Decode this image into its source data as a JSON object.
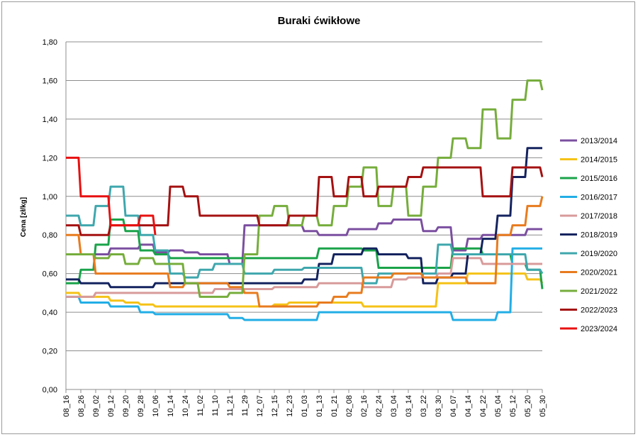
{
  "chart_data": {
    "type": "line",
    "title": "Buraki ćwikłowe",
    "ylabel": "Cena [zł/kg]",
    "xlabel": "",
    "ylim": [
      0,
      1.8
    ],
    "yticks": [
      "0,00",
      "0,20",
      "0,40",
      "0,60",
      "0,80",
      "1,00",
      "1,20",
      "1,40",
      "1,60",
      "1,80"
    ],
    "ytick_values": [
      0,
      0.2,
      0.4,
      0.6,
      0.8,
      1.0,
      1.2,
      1.4,
      1.6,
      1.8
    ],
    "x_categories": [
      "08_16",
      "08_26",
      "09_02",
      "09_12",
      "09_20",
      "09_28",
      "10_06",
      "10_14",
      "10_24",
      "11_02",
      "11_10",
      "11_21",
      "11_29",
      "12_07",
      "12_15",
      "12_23",
      "01_03",
      "01_13",
      "01_21",
      "02_08",
      "02_16",
      "02_24",
      "03_04",
      "03_14",
      "03_22",
      "03_30",
      "04_07",
      "04_14",
      "04_22",
      "05_04",
      "05_12",
      "05_20",
      "05_30"
    ],
    "grid": "horizontal",
    "legend_position": "right",
    "series": [
      {
        "name": "2013/2014",
        "color": "#7b4fa0",
        "values": [
          0.7,
          0.7,
          0.7,
          0.73,
          0.73,
          0.75,
          0.71,
          0.72,
          0.71,
          0.7,
          0.7,
          0.65,
          0.85,
          0.85,
          0.85,
          0.85,
          0.82,
          0.8,
          0.8,
          0.83,
          0.83,
          0.86,
          0.88,
          0.88,
          0.82,
          0.84,
          0.72,
          0.78,
          0.8,
          0.8,
          0.8,
          0.83,
          0.83
        ]
      },
      {
        "name": "2014/2015",
        "color": "#f5c217",
        "values": [
          0.5,
          0.48,
          0.48,
          0.46,
          0.45,
          0.44,
          0.43,
          0.43,
          0.43,
          0.43,
          0.43,
          0.43,
          0.43,
          0.43,
          0.44,
          0.45,
          0.45,
          0.45,
          0.45,
          0.45,
          0.43,
          0.43,
          0.43,
          0.43,
          0.43,
          0.55,
          0.55,
          0.6,
          0.6,
          0.6,
          0.6,
          0.57,
          0.55
        ]
      },
      {
        "name": "2015/2016",
        "color": "#1aa34a",
        "values": [
          0.55,
          0.62,
          0.75,
          0.88,
          0.82,
          0.72,
          0.7,
          0.68,
          0.68,
          0.68,
          0.68,
          0.68,
          0.68,
          0.68,
          0.68,
          0.68,
          0.68,
          0.73,
          0.73,
          0.73,
          0.72,
          0.63,
          0.63,
          0.63,
          0.63,
          0.63,
          0.73,
          0.73,
          0.7,
          0.7,
          0.65,
          0.62,
          0.52
        ]
      },
      {
        "name": "2016/2017",
        "color": "#22aee6",
        "values": [
          0.48,
          0.45,
          0.45,
          0.43,
          0.43,
          0.4,
          0.39,
          0.39,
          0.39,
          0.39,
          0.39,
          0.37,
          0.36,
          0.36,
          0.36,
          0.36,
          0.36,
          0.4,
          0.4,
          0.4,
          0.4,
          0.4,
          0.4,
          0.4,
          0.4,
          0.4,
          0.36,
          0.36,
          0.36,
          0.4,
          0.73,
          0.73,
          0.73
        ]
      },
      {
        "name": "2017/2018",
        "color": "#d89a9a",
        "values": [
          0.48,
          0.48,
          0.5,
          0.5,
          0.5,
          0.5,
          0.5,
          0.5,
          0.5,
          0.5,
          0.52,
          0.52,
          0.52,
          0.52,
          0.53,
          0.53,
          0.53,
          0.55,
          0.55,
          0.55,
          0.53,
          0.53,
          0.57,
          0.58,
          0.58,
          0.6,
          0.68,
          0.68,
          0.65,
          0.65,
          0.65,
          0.65,
          0.65
        ]
      },
      {
        "name": "2018/2019",
        "color": "#14235f",
        "values": [
          0.57,
          0.55,
          0.55,
          0.53,
          0.53,
          0.53,
          0.55,
          0.55,
          0.55,
          0.55,
          0.55,
          0.55,
          0.55,
          0.55,
          0.55,
          0.55,
          0.57,
          0.65,
          0.7,
          0.7,
          0.73,
          0.7,
          0.7,
          0.68,
          0.55,
          0.58,
          0.6,
          0.7,
          0.78,
          0.9,
          1.1,
          1.25,
          1.25
        ]
      },
      {
        "name": "2019/2020",
        "color": "#3fa7ad",
        "values": [
          0.9,
          0.85,
          0.95,
          1.05,
          0.9,
          0.8,
          0.72,
          0.6,
          0.58,
          0.62,
          0.65,
          0.65,
          0.6,
          0.6,
          0.62,
          0.62,
          0.63,
          0.63,
          0.63,
          0.63,
          0.55,
          0.6,
          0.6,
          0.6,
          0.6,
          0.75,
          0.7,
          0.7,
          0.7,
          0.7,
          0.7,
          0.62,
          0.6
        ]
      },
      {
        "name": "2020/2021",
        "color": "#e87b1e",
        "values": [
          0.8,
          0.7,
          0.6,
          0.6,
          0.6,
          0.6,
          0.6,
          0.53,
          0.55,
          0.55,
          0.55,
          0.53,
          0.5,
          0.43,
          0.43,
          0.43,
          0.43,
          0.45,
          0.48,
          0.5,
          0.58,
          0.58,
          0.6,
          0.6,
          0.58,
          0.58,
          0.58,
          0.55,
          0.55,
          0.8,
          0.85,
          0.95,
          1.0
        ]
      },
      {
        "name": "2021/2022",
        "color": "#76ad3c",
        "values": [
          0.7,
          0.7,
          0.68,
          0.7,
          0.65,
          0.68,
          0.65,
          0.65,
          0.55,
          0.48,
          0.48,
          0.5,
          0.7,
          0.9,
          0.95,
          0.85,
          0.9,
          0.85,
          0.95,
          1.05,
          1.15,
          0.95,
          1.05,
          0.9,
          1.05,
          1.2,
          1.3,
          1.25,
          1.45,
          1.3,
          1.5,
          1.6,
          1.55
        ]
      },
      {
        "name": "2022/2023",
        "color": "#a51111",
        "values": [
          0.85,
          0.8,
          0.8,
          0.85,
          0.85,
          0.85,
          0.85,
          1.05,
          1.0,
          0.9,
          0.9,
          0.9,
          0.9,
          0.85,
          0.85,
          0.9,
          0.9,
          1.1,
          1.0,
          1.1,
          1.0,
          1.05,
          1.05,
          1.1,
          1.15,
          1.15,
          1.15,
          1.15,
          1.0,
          1.0,
          1.15,
          1.15,
          1.1
        ]
      },
      {
        "name": "2023/2024",
        "color": "#e81010",
        "values": [
          1.2,
          1.0,
          1.0,
          0.85,
          0.85,
          0.9,
          0.8
        ]
      }
    ]
  }
}
